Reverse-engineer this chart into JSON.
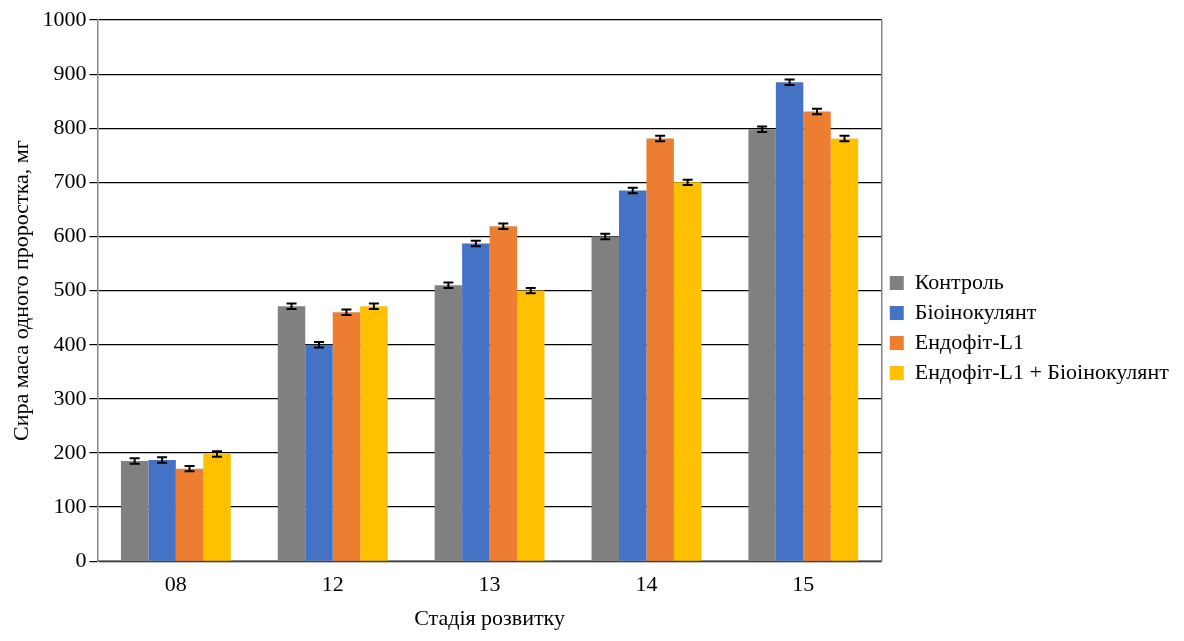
{
  "chart_data": {
    "type": "bar",
    "xlabel": "Стадія розвитку",
    "ylabel": "Сира маса одного проростка, мг",
    "categories": [
      "08",
      "12",
      "13",
      "14",
      "15"
    ],
    "series": [
      {
        "name": "Контроль",
        "color": "#808080",
        "values": [
          185,
          471,
          510,
          600,
          798
        ],
        "errors": [
          5,
          5,
          5,
          5,
          5
        ]
      },
      {
        "name": "Біоінокулянт",
        "color": "#4472c4",
        "values": [
          187,
          400,
          587,
          685,
          885
        ],
        "errors": [
          5,
          5,
          5,
          5,
          5
        ]
      },
      {
        "name": "Ендофіт-L1",
        "color": "#ed7d31",
        "values": [
          171,
          460,
          619,
          781,
          831
        ],
        "errors": [
          5,
          5,
          5,
          5,
          5
        ]
      },
      {
        "name": "Ендофіт-L1 + Біоінокулянт",
        "color": "#ffc000",
        "values": [
          198,
          471,
          500,
          700,
          781
        ],
        "errors": [
          5,
          5,
          5,
          5,
          5
        ]
      }
    ],
    "ylim": [
      0,
      1000
    ],
    "yticks": [
      0,
      100,
      200,
      300,
      400,
      500,
      600,
      700,
      800,
      900,
      1000
    ],
    "grid": "y",
    "legend": "right"
  }
}
